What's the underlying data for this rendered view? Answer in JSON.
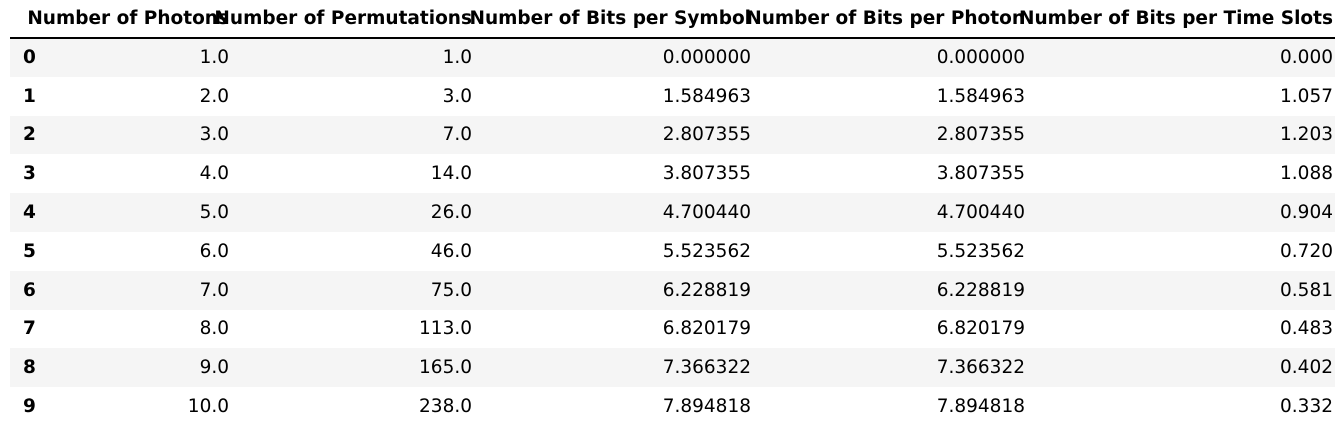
{
  "table": {
    "columns": [
      "Number of Photons",
      "Number of Permutations",
      "Number of Bits per Symbol",
      "Number of Bits per Photon",
      "Number of Bits per Time Slots"
    ],
    "index": [
      "0",
      "1",
      "2",
      "3",
      "4",
      "5",
      "6",
      "7",
      "8",
      "9"
    ],
    "rows": [
      [
        "1.0",
        "1.0",
        "0.000000",
        "0.000000",
        "0.000"
      ],
      [
        "2.0",
        "3.0",
        "1.584963",
        "1.584963",
        "1.057"
      ],
      [
        "3.0",
        "7.0",
        "2.807355",
        "2.807355",
        "1.203"
      ],
      [
        "4.0",
        "14.0",
        "3.807355",
        "3.807355",
        "1.088"
      ],
      [
        "5.0",
        "26.0",
        "4.700440",
        "4.700440",
        "0.904"
      ],
      [
        "6.0",
        "46.0",
        "5.523562",
        "5.523562",
        "0.720"
      ],
      [
        "7.0",
        "75.0",
        "6.228819",
        "6.228819",
        "0.581"
      ],
      [
        "8.0",
        "113.0",
        "6.820179",
        "6.820179",
        "0.483"
      ],
      [
        "9.0",
        "165.0",
        "7.366322",
        "7.366322",
        "0.402"
      ],
      [
        "10.0",
        "238.0",
        "7.894818",
        "7.894818",
        "0.332"
      ]
    ]
  },
  "colors": {
    "stripe": "#f5f5f5",
    "rule": "#000000"
  }
}
